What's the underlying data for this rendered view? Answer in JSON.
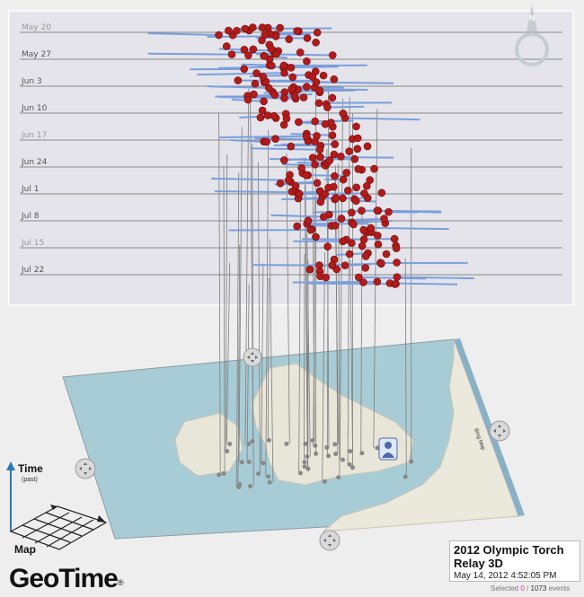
{
  "app": {
    "brand": "GeoTime",
    "brand_mark": "®"
  },
  "timeline": {
    "dates": [
      {
        "label": "May 20",
        "dim": true
      },
      {
        "label": "May 27",
        "dim": false
      },
      {
        "label": "Jun 3",
        "dim": false
      },
      {
        "label": "Jun 10",
        "dim": false
      },
      {
        "label": "Jun 17",
        "dim": true
      },
      {
        "label": "Jun 24",
        "dim": false
      },
      {
        "label": "Jul 1",
        "dim": false
      },
      {
        "label": "Jul 8",
        "dim": false
      },
      {
        "label": "Jul 15",
        "dim": true
      },
      {
        "label": "Jul 22",
        "dim": false
      }
    ],
    "event_color": "#b31b1b",
    "link_color": "#7b9fdc"
  },
  "legend": {
    "time_label": "Time",
    "time_sub": "(past)",
    "map_label": "Map"
  },
  "map": {
    "edge_label": "Bing Map"
  },
  "info": {
    "title": "2012 Olympic Torch Relay 3D",
    "datetime": "May 14, 2012 4:52:05 PM"
  },
  "status": {
    "prefix": "Selected",
    "selected": "0",
    "separator": "/",
    "total": "1073",
    "suffix": "events"
  },
  "icons": [
    "compass-north-icon",
    "pan-control-icon",
    "person-icon"
  ]
}
